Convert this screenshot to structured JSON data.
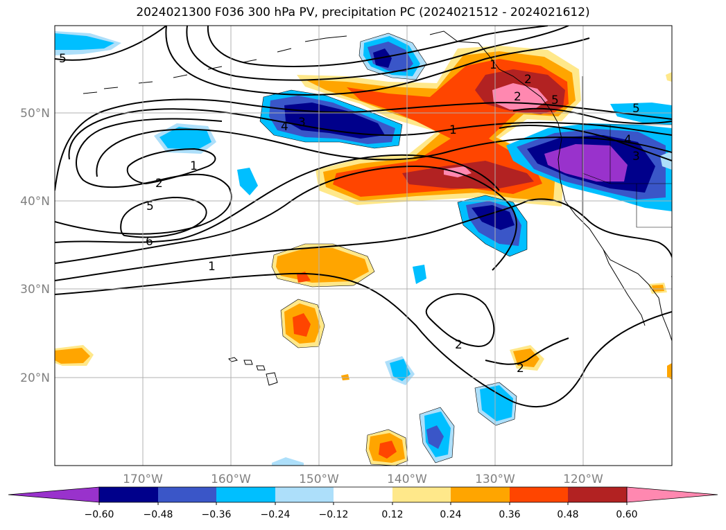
{
  "title": "2024021300 F036 300 hPa PV, precipitation PC (2024021512 - 2024021612)",
  "lat_labels": [
    "50°N",
    "40°N",
    "30°N",
    "20°N"
  ],
  "lon_labels": [
    "170°W",
    "160°W",
    "150°W",
    "140°W",
    "130°W",
    "120°W"
  ],
  "colorbar": {
    "ticks": [
      "−0.60",
      "−0.48",
      "−0.36",
      "−0.24",
      "−0.12",
      "0.12",
      "0.24",
      "0.36",
      "0.48",
      "0.60"
    ],
    "colors": [
      "#9932CC",
      "#00008B",
      "#3A56C8",
      "#00BFFF",
      "#ADDFFA",
      "#FFFFFF",
      "#FFE88A",
      "#FFA500",
      "#FF4500",
      "#B22222",
      "#FF88B0"
    ]
  },
  "contour_labels": [
    "5",
    "1",
    "2",
    "5",
    "6",
    "1",
    "4",
    "3",
    "1",
    "2",
    "5",
    "2",
    "5",
    "4",
    "3",
    "1",
    "2",
    "2"
  ]
}
